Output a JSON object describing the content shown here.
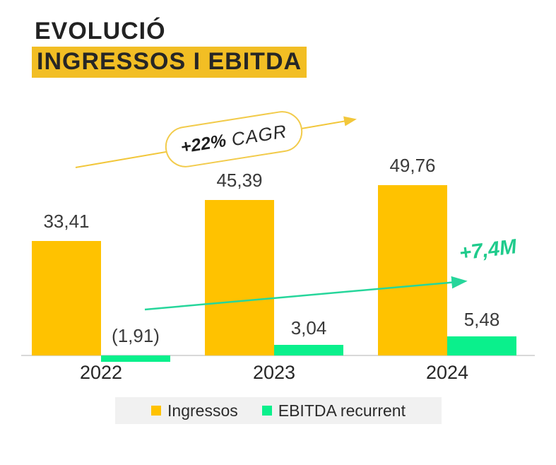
{
  "title": {
    "line1": "EVOLUCIÓ",
    "line2": "INGRESSOS I EBITDA"
  },
  "annotations": {
    "cagr_bold": "+22%",
    "cagr_text": "CAGR",
    "growth_label": "+7,4M"
  },
  "chart_data": {
    "type": "bar",
    "title": "EVOLUCIÓ INGRESSOS I EBITDA",
    "categories": [
      "2022",
      "2023",
      "2024"
    ],
    "series": [
      {
        "name": "Ingressos",
        "values": [
          33.41,
          45.39,
          49.76
        ],
        "labels": [
          "33,41",
          "45,39",
          "49,76"
        ],
        "color": "#FFC200"
      },
      {
        "name": "EBITDA recurrent",
        "values": [
          -1.91,
          3.04,
          5.48
        ],
        "labels": [
          "(1,91)",
          "3,04",
          "5,48"
        ],
        "color": "#0AF08C"
      }
    ],
    "xlabel": "",
    "ylabel": "",
    "ylim": [
      -5,
      55
    ],
    "grid": false,
    "legend_position": "bottom",
    "annotations": [
      {
        "text": "+22% CAGR",
        "series": "Ingressos",
        "shape": "pill-with-arrow",
        "color": "#F2CB4B"
      },
      {
        "text": "+7,4M",
        "series": "EBITDA recurrent",
        "shape": "arrow",
        "color": "#1FCB8C"
      }
    ]
  },
  "legend": {
    "items": [
      {
        "label": "Ingressos",
        "color": "#FFC200"
      },
      {
        "label": "EBITDA recurrent",
        "color": "#0AF08C"
      }
    ]
  },
  "colors": {
    "title_highlight": "#F2BE24",
    "bar_yellow": "#FFC200",
    "bar_green": "#0AF08C",
    "arrow_yellow": "#F2C73B",
    "arrow_green": "#26D69B",
    "growth_text_green": "#1FCB8C",
    "text_dark": "#2D2D2D",
    "baseline_gray": "#D8D8D8",
    "legend_bg": "#F1F1F1"
  }
}
